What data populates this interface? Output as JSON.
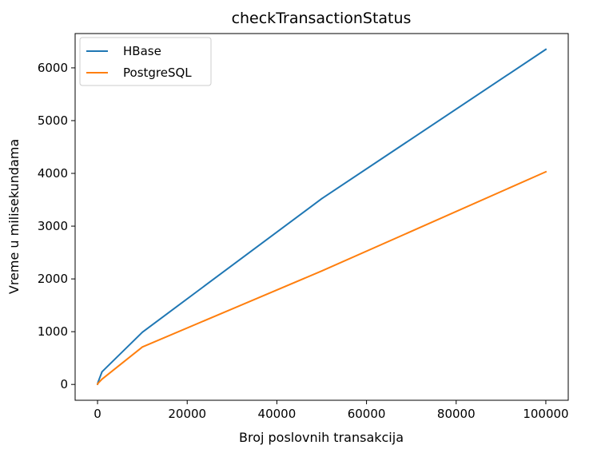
{
  "chart_data": {
    "type": "line",
    "title": "checkTransactionStatus",
    "xlabel": "Broj poslovnih transakcija",
    "ylabel": "Vreme u milisekundama",
    "x": [
      10,
      100,
      1000,
      10000,
      50000,
      100000
    ],
    "series": [
      {
        "name": "HBase",
        "color": "#1f77b4",
        "values": [
          5,
          40,
          240,
          990,
          3520,
          6350
        ]
      },
      {
        "name": "PostgreSQL",
        "color": "#ff7f0e",
        "values": [
          5,
          20,
          100,
          710,
          2150,
          4030
        ]
      }
    ],
    "xlim": [
      -5000,
      105000
    ],
    "ylim": [
      -300,
      6650
    ],
    "xticks": [
      0,
      20000,
      40000,
      60000,
      80000,
      100000
    ],
    "xtick_labels": [
      "0",
      "20000",
      "40000",
      "60000",
      "80000",
      "100000"
    ],
    "yticks": [
      0,
      1000,
      2000,
      3000,
      4000,
      5000,
      6000
    ],
    "ytick_labels": [
      "0",
      "1000",
      "2000",
      "3000",
      "4000",
      "5000",
      "6000"
    ],
    "grid": false,
    "legend": "upper-left"
  }
}
